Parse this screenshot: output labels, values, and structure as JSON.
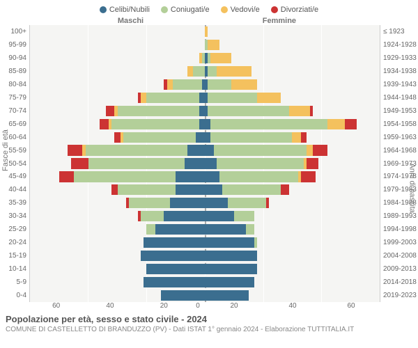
{
  "legend": [
    {
      "label": "Celibi/Nubili",
      "color": "#3b6e8f"
    },
    {
      "label": "Coniugati/e",
      "color": "#b3cf99"
    },
    {
      "label": "Vedovi/e",
      "color": "#f4c15e"
    },
    {
      "label": "Divorziati/e",
      "color": "#cc3333"
    }
  ],
  "headers": {
    "left": "Maschi",
    "right": "Femmine"
  },
  "y_label_left": "Fasce di età",
  "y_label_right": "Anni di nascita",
  "x_ticks_left": [
    "60",
    "40",
    "20",
    "0"
  ],
  "x_ticks_right": [
    "0",
    "20",
    "40",
    "60"
  ],
  "x_max": 60,
  "colors": {
    "celibi": "#3b6e8f",
    "coniugati": "#b3cf99",
    "vedovi": "#f4c15e",
    "divorziati": "#cc3333",
    "background": "#f5f5f3",
    "grid": "#ffffff",
    "center": "#aaaaaa"
  },
  "age_groups": [
    "100+",
    "95-99",
    "90-94",
    "85-89",
    "80-84",
    "75-79",
    "70-74",
    "65-69",
    "60-64",
    "55-59",
    "50-54",
    "45-49",
    "40-44",
    "35-39",
    "30-34",
    "25-29",
    "20-24",
    "15-19",
    "10-14",
    "5-9",
    "0-4"
  ],
  "birth_years": [
    "≤ 1923",
    "1924-1928",
    "1929-1933",
    "1934-1938",
    "1939-1943",
    "1944-1948",
    "1949-1953",
    "1954-1958",
    "1959-1963",
    "1964-1968",
    "1969-1973",
    "1974-1978",
    "1979-1983",
    "1984-1988",
    "1989-1993",
    "1994-1998",
    "1999-2003",
    "2004-2008",
    "2009-2013",
    "2014-2018",
    "2019-2023"
  ],
  "data": [
    {
      "m": {
        "c": 0,
        "g": 0,
        "v": 0,
        "d": 0
      },
      "f": {
        "c": 0,
        "g": 0,
        "v": 1,
        "d": 0
      }
    },
    {
      "m": {
        "c": 0,
        "g": 0,
        "v": 0,
        "d": 0
      },
      "f": {
        "c": 0,
        "g": 1,
        "v": 4,
        "d": 0
      }
    },
    {
      "m": {
        "c": 0,
        "g": 1,
        "v": 1,
        "d": 0
      },
      "f": {
        "c": 1,
        "g": 1,
        "v": 7,
        "d": 0
      }
    },
    {
      "m": {
        "c": 0,
        "g": 4,
        "v": 2,
        "d": 0
      },
      "f": {
        "c": 1,
        "g": 3,
        "v": 12,
        "d": 0
      }
    },
    {
      "m": {
        "c": 1,
        "g": 10,
        "v": 2,
        "d": 1
      },
      "f": {
        "c": 1,
        "g": 8,
        "v": 9,
        "d": 0
      }
    },
    {
      "m": {
        "c": 2,
        "g": 18,
        "v": 2,
        "d": 1
      },
      "f": {
        "c": 1,
        "g": 17,
        "v": 8,
        "d": 0
      }
    },
    {
      "m": {
        "c": 2,
        "g": 28,
        "v": 1,
        "d": 3
      },
      "f": {
        "c": 1,
        "g": 28,
        "v": 7,
        "d": 1
      }
    },
    {
      "m": {
        "c": 2,
        "g": 30,
        "v": 1,
        "d": 3
      },
      "f": {
        "c": 2,
        "g": 40,
        "v": 6,
        "d": 4
      }
    },
    {
      "m": {
        "c": 3,
        "g": 25,
        "v": 1,
        "d": 2
      },
      "f": {
        "c": 2,
        "g": 28,
        "v": 3,
        "d": 2
      }
    },
    {
      "m": {
        "c": 6,
        "g": 35,
        "v": 1,
        "d": 5
      },
      "f": {
        "c": 3,
        "g": 32,
        "v": 2,
        "d": 5
      }
    },
    {
      "m": {
        "c": 7,
        "g": 33,
        "v": 0,
        "d": 6
      },
      "f": {
        "c": 4,
        "g": 30,
        "v": 1,
        "d": 4
      }
    },
    {
      "m": {
        "c": 10,
        "g": 35,
        "v": 0,
        "d": 5
      },
      "f": {
        "c": 5,
        "g": 27,
        "v": 1,
        "d": 5
      }
    },
    {
      "m": {
        "c": 10,
        "g": 20,
        "v": 0,
        "d": 2
      },
      "f": {
        "c": 6,
        "g": 20,
        "v": 0,
        "d": 3
      }
    },
    {
      "m": {
        "c": 12,
        "g": 14,
        "v": 0,
        "d": 1
      },
      "f": {
        "c": 8,
        "g": 13,
        "v": 0,
        "d": 1
      }
    },
    {
      "m": {
        "c": 14,
        "g": 8,
        "v": 0,
        "d": 1
      },
      "f": {
        "c": 10,
        "g": 7,
        "v": 0,
        "d": 0
      }
    },
    {
      "m": {
        "c": 17,
        "g": 3,
        "v": 0,
        "d": 0
      },
      "f": {
        "c": 14,
        "g": 3,
        "v": 0,
        "d": 0
      }
    },
    {
      "m": {
        "c": 21,
        "g": 0,
        "v": 0,
        "d": 0
      },
      "f": {
        "c": 17,
        "g": 1,
        "v": 0,
        "d": 0
      }
    },
    {
      "m": {
        "c": 22,
        "g": 0,
        "v": 0,
        "d": 0
      },
      "f": {
        "c": 18,
        "g": 0,
        "v": 0,
        "d": 0
      }
    },
    {
      "m": {
        "c": 20,
        "g": 0,
        "v": 0,
        "d": 0
      },
      "f": {
        "c": 18,
        "g": 0,
        "v": 0,
        "d": 0
      }
    },
    {
      "m": {
        "c": 21,
        "g": 0,
        "v": 0,
        "d": 0
      },
      "f": {
        "c": 17,
        "g": 0,
        "v": 0,
        "d": 0
      }
    },
    {
      "m": {
        "c": 15,
        "g": 0,
        "v": 0,
        "d": 0
      },
      "f": {
        "c": 15,
        "g": 0,
        "v": 0,
        "d": 0
      }
    }
  ],
  "title": "Popolazione per età, sesso e stato civile - 2024",
  "subtitle": "COMUNE DI CASTELLETTO DI BRANDUZZO (PV) - Dati ISTAT 1° gennaio 2024 - Elaborazione TUTTITALIA.IT"
}
